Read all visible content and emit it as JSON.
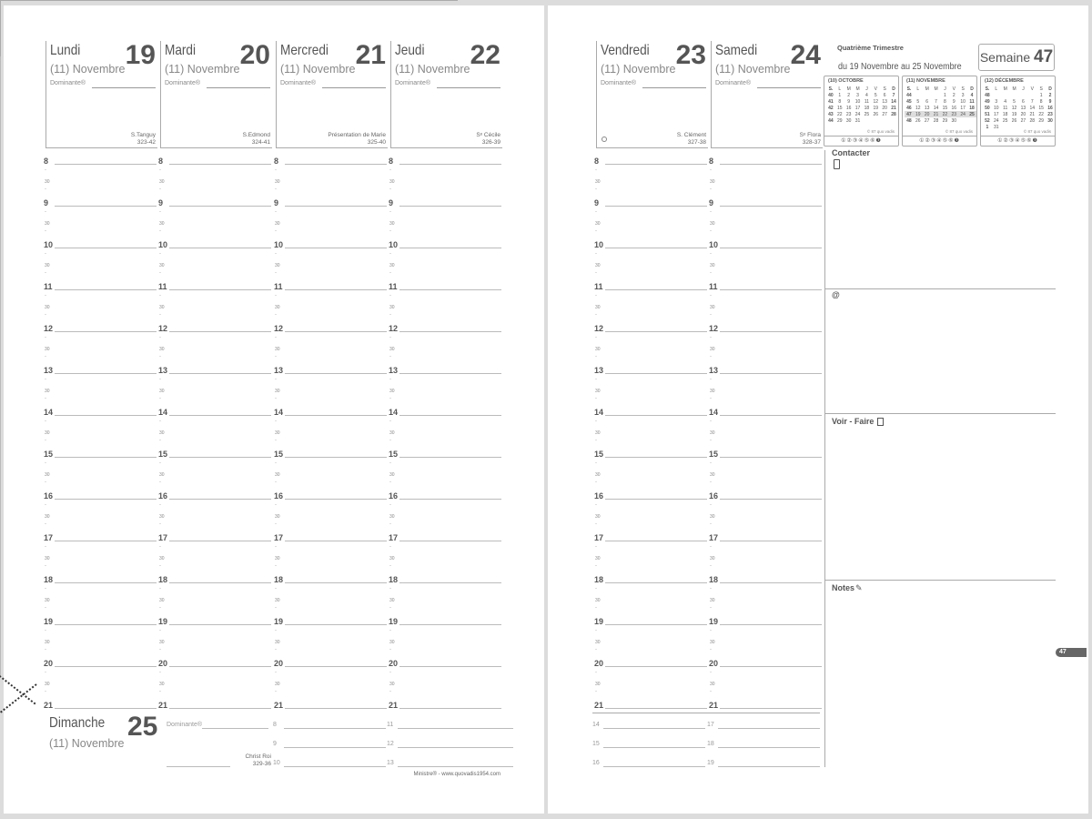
{
  "hours": [
    "8",
    "9",
    "10",
    "11",
    "12",
    "13",
    "14",
    "15",
    "16",
    "17",
    "18",
    "19",
    "20",
    "21"
  ],
  "half_label": "30",
  "dominante_label": "Dominante®",
  "days": [
    {
      "name": "Lundi",
      "num": "19",
      "month": "(11) Novembre",
      "saint": "S.Tanguy",
      "count": "323-42"
    },
    {
      "name": "Mardi",
      "num": "20",
      "month": "(11) Novembre",
      "saint": "S.Edmond",
      "count": "324-41"
    },
    {
      "name": "Mercredi",
      "num": "21",
      "month": "(11) Novembre",
      "saint": "Présentation de Marie",
      "count": "325-40"
    },
    {
      "name": "Jeudi",
      "num": "22",
      "month": "(11) Novembre",
      "saint": "Sᵉ Cécile",
      "count": "326-39"
    },
    {
      "name": "Vendredi",
      "num": "23",
      "month": "(11) Novembre",
      "saint": "S. Clément",
      "count": "327-38"
    },
    {
      "name": "Samedi",
      "num": "24",
      "month": "(11) Novembre",
      "saint": "Sᵉ Flora",
      "count": "328-37"
    }
  ],
  "sunday": {
    "name": "Dimanche",
    "num": "25",
    "month": "(11) Novembre",
    "saint": "Christ Roi",
    "count": "329-36",
    "slots_left": [
      "8",
      "9",
      "10"
    ],
    "slots_mid": [
      "11",
      "12",
      "13"
    ],
    "slots_right_a": [
      "14",
      "15",
      "16"
    ],
    "slots_right_b": [
      "17",
      "18",
      "19"
    ]
  },
  "footer": "Ministre® - www.quovadis1954.com",
  "quarter": "Quatrième Trimestre",
  "range": "du 19 Novembre au 25 Novembre",
  "week": {
    "label": "Semaine",
    "num": "47"
  },
  "page_tab": "47",
  "sections": {
    "contact": "Contacter",
    "email": "@",
    "todo": "Voir - Faire",
    "notes": "Notes"
  },
  "calendar_header": [
    "S.",
    "L",
    "M",
    "M",
    "J",
    "V",
    "S",
    "D"
  ],
  "calendar_footer": "© 87 quo vadis",
  "calendar_dots": "①②③④⑤⑥❼",
  "calendars": [
    {
      "title": "(10) OCTOBRE",
      "weeks": [
        [
          "40",
          "1",
          "2",
          "3",
          "4",
          "5",
          "6",
          "7"
        ],
        [
          "41",
          "8",
          "9",
          "10",
          "11",
          "12",
          "13",
          "14"
        ],
        [
          "42",
          "15",
          "16",
          "17",
          "18",
          "19",
          "20",
          "21"
        ],
        [
          "43",
          "22",
          "23",
          "24",
          "25",
          "26",
          "27",
          "28"
        ],
        [
          "44",
          "29",
          "30",
          "31",
          "",
          "",
          "",
          ""
        ]
      ]
    },
    {
      "title": "(11) NOVEMBRE",
      "current_week": "47",
      "weeks": [
        [
          "44",
          "",
          "",
          "",
          "1",
          "2",
          "3",
          "4"
        ],
        [
          "45",
          "5",
          "6",
          "7",
          "8",
          "9",
          "10",
          "11"
        ],
        [
          "46",
          "12",
          "13",
          "14",
          "15",
          "16",
          "17",
          "18"
        ],
        [
          "47",
          "19",
          "20",
          "21",
          "22",
          "23",
          "24",
          "25"
        ],
        [
          "48",
          "26",
          "27",
          "28",
          "29",
          "30",
          "",
          ""
        ]
      ]
    },
    {
      "title": "(12) DÉCEMBRE",
      "weeks": [
        [
          "48",
          "",
          "",
          "",
          "",
          "",
          "1",
          "2"
        ],
        [
          "49",
          "3",
          "4",
          "5",
          "6",
          "7",
          "8",
          "9"
        ],
        [
          "50",
          "10",
          "11",
          "12",
          "13",
          "14",
          "15",
          "16"
        ],
        [
          "51",
          "17",
          "18",
          "19",
          "20",
          "21",
          "22",
          "23"
        ],
        [
          "52",
          "24",
          "25",
          "26",
          "27",
          "28",
          "29",
          "30"
        ],
        [
          "1",
          "31",
          "",
          "",
          "",
          "",
          "",
          ""
        ]
      ]
    }
  ]
}
